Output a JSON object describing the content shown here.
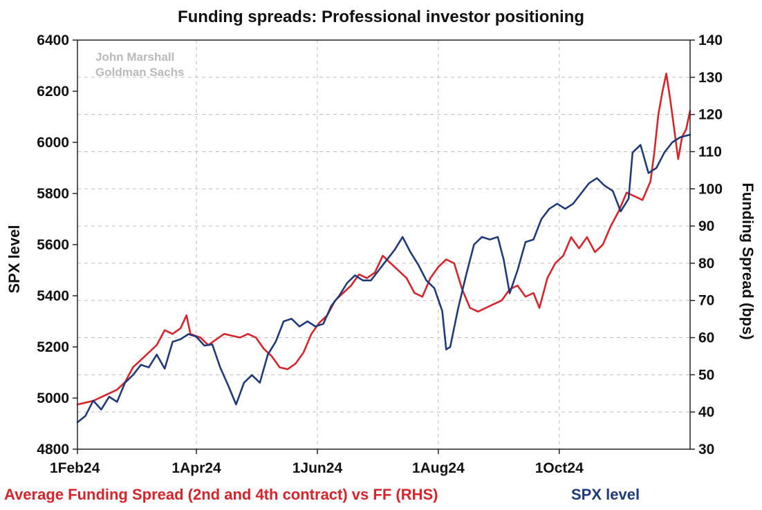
{
  "chart_data": {
    "type": "line",
    "title": "Funding spreads: Professional investor positioning",
    "watermark": [
      "John Marshall",
      "Goldman Sachs"
    ],
    "x_axis": {
      "start": "2024-02-01",
      "end": "2024-12-06",
      "ticks": [
        {
          "date": "2024-02-01",
          "label": "1Feb24"
        },
        {
          "date": "2024-04-01",
          "label": "1Apr24"
        },
        {
          "date": "2024-06-01",
          "label": "1Jun24"
        },
        {
          "date": "2024-08-01",
          "label": "1Aug24"
        },
        {
          "date": "2024-10-01",
          "label": "1Oct24"
        }
      ]
    },
    "y_left": {
      "label": "SPX level",
      "min": 4800,
      "max": 6400,
      "ticks": [
        "4800",
        "5000",
        "5200",
        "5400",
        "5600",
        "5800",
        "6000",
        "6200",
        "6400"
      ]
    },
    "y_right": {
      "label": "Funding Spread (bps)",
      "min": 30,
      "max": 140,
      "ticks": [
        "30",
        "40",
        "50",
        "60",
        "70",
        "80",
        "90",
        "100",
        "110",
        "120",
        "130",
        "140"
      ]
    },
    "grid": true,
    "legend_position": "bottom",
    "series": [
      {
        "name": "Average Funding Spread (2nd and 4th contract) vs FF (RHS)",
        "axis": "right",
        "color": "#d8232a",
        "points": [
          [
            "2024-02-01",
            42.0
          ],
          [
            "2024-02-05",
            42.5
          ],
          [
            "2024-02-09",
            43.0
          ],
          [
            "2024-02-13",
            44.0
          ],
          [
            "2024-02-17",
            45.0
          ],
          [
            "2024-02-21",
            46.0
          ],
          [
            "2024-02-25",
            48.0
          ],
          [
            "2024-02-29",
            52.0
          ],
          [
            "2024-03-04",
            54.0
          ],
          [
            "2024-03-08",
            56.0
          ],
          [
            "2024-03-12",
            58.0
          ],
          [
            "2024-03-16",
            62.0
          ],
          [
            "2024-03-20",
            61.0
          ],
          [
            "2024-03-24",
            62.5
          ],
          [
            "2024-03-27",
            66.0
          ],
          [
            "2024-03-29",
            61.0
          ],
          [
            "2024-04-03",
            60.0
          ],
          [
            "2024-04-07",
            58.0
          ],
          [
            "2024-04-11",
            59.5
          ],
          [
            "2024-04-15",
            61.0
          ],
          [
            "2024-04-19",
            60.5
          ],
          [
            "2024-04-23",
            60.0
          ],
          [
            "2024-04-27",
            61.0
          ],
          [
            "2024-05-01",
            60.0
          ],
          [
            "2024-05-05",
            57.0
          ],
          [
            "2024-05-09",
            55.0
          ],
          [
            "2024-05-13",
            52.0
          ],
          [
            "2024-05-17",
            51.5
          ],
          [
            "2024-05-21",
            53.0
          ],
          [
            "2024-05-25",
            56.0
          ],
          [
            "2024-05-29",
            61.0
          ],
          [
            "2024-06-02",
            64.0
          ],
          [
            "2024-06-06",
            66.0
          ],
          [
            "2024-06-10",
            70.0
          ],
          [
            "2024-06-14",
            72.0
          ],
          [
            "2024-06-18",
            74.0
          ],
          [
            "2024-06-22",
            77.0
          ],
          [
            "2024-06-26",
            76.0
          ],
          [
            "2024-06-30",
            77.5
          ],
          [
            "2024-07-04",
            82.0
          ],
          [
            "2024-07-08",
            80.0
          ],
          [
            "2024-07-12",
            78.0
          ],
          [
            "2024-07-16",
            76.0
          ],
          [
            "2024-07-20",
            72.0
          ],
          [
            "2024-07-24",
            71.0
          ],
          [
            "2024-07-28",
            76.0
          ],
          [
            "2024-08-01",
            79.0
          ],
          [
            "2024-08-05",
            81.0
          ],
          [
            "2024-08-09",
            80.0
          ],
          [
            "2024-08-13",
            73.0
          ],
          [
            "2024-08-17",
            68.0
          ],
          [
            "2024-08-21",
            67.0
          ],
          [
            "2024-08-25",
            68.0
          ],
          [
            "2024-08-29",
            69.0
          ],
          [
            "2024-09-02",
            70.0
          ],
          [
            "2024-09-06",
            73.0
          ],
          [
            "2024-09-10",
            74.0
          ],
          [
            "2024-09-14",
            71.0
          ],
          [
            "2024-09-18",
            72.0
          ],
          [
            "2024-09-21",
            68.0
          ],
          [
            "2024-09-25",
            76.0
          ],
          [
            "2024-09-29",
            80.0
          ],
          [
            "2024-10-03",
            82.0
          ],
          [
            "2024-10-07",
            87.0
          ],
          [
            "2024-10-11",
            84.0
          ],
          [
            "2024-10-15",
            87.0
          ],
          [
            "2024-10-19",
            83.0
          ],
          [
            "2024-10-23",
            85.0
          ],
          [
            "2024-10-27",
            90.0
          ],
          [
            "2024-10-31",
            94.0
          ],
          [
            "2024-11-04",
            99.0
          ],
          [
            "2024-11-08",
            98.0
          ],
          [
            "2024-11-12",
            97.0
          ],
          [
            "2024-11-16",
            102.0
          ],
          [
            "2024-11-18",
            110.0
          ],
          [
            "2024-11-20",
            120.0
          ],
          [
            "2024-11-22",
            126.0
          ],
          [
            "2024-11-24",
            131.0
          ],
          [
            "2024-11-26",
            124.0
          ],
          [
            "2024-11-28",
            116.0
          ],
          [
            "2024-11-30",
            108.0
          ],
          [
            "2024-12-02",
            114.0
          ],
          [
            "2024-12-04",
            116.0
          ],
          [
            "2024-12-06",
            121.0
          ]
        ]
      },
      {
        "name": "SPX level",
        "axis": "left",
        "color": "#1f3a7a",
        "points": [
          [
            "2024-02-01",
            4905
          ],
          [
            "2024-02-05",
            4930
          ],
          [
            "2024-02-09",
            4990
          ],
          [
            "2024-02-13",
            4955
          ],
          [
            "2024-02-17",
            5005
          ],
          [
            "2024-02-21",
            4985
          ],
          [
            "2024-02-25",
            5060
          ],
          [
            "2024-02-29",
            5090
          ],
          [
            "2024-03-04",
            5130
          ],
          [
            "2024-03-08",
            5120
          ],
          [
            "2024-03-12",
            5170
          ],
          [
            "2024-03-16",
            5115
          ],
          [
            "2024-03-20",
            5220
          ],
          [
            "2024-03-24",
            5230
          ],
          [
            "2024-03-28",
            5250
          ],
          [
            "2024-04-01",
            5240
          ],
          [
            "2024-04-05",
            5205
          ],
          [
            "2024-04-09",
            5210
          ],
          [
            "2024-04-13",
            5120
          ],
          [
            "2024-04-17",
            5050
          ],
          [
            "2024-04-21",
            4975
          ],
          [
            "2024-04-25",
            5060
          ],
          [
            "2024-04-29",
            5090
          ],
          [
            "2024-05-03",
            5060
          ],
          [
            "2024-05-07",
            5170
          ],
          [
            "2024-05-11",
            5220
          ],
          [
            "2024-05-15",
            5300
          ],
          [
            "2024-05-19",
            5310
          ],
          [
            "2024-05-23",
            5280
          ],
          [
            "2024-05-27",
            5300
          ],
          [
            "2024-05-31",
            5280
          ],
          [
            "2024-06-04",
            5290
          ],
          [
            "2024-06-08",
            5360
          ],
          [
            "2024-06-12",
            5400
          ],
          [
            "2024-06-16",
            5450
          ],
          [
            "2024-06-20",
            5480
          ],
          [
            "2024-06-24",
            5460
          ],
          [
            "2024-06-28",
            5460
          ],
          [
            "2024-07-02",
            5500
          ],
          [
            "2024-07-06",
            5540
          ],
          [
            "2024-07-10",
            5580
          ],
          [
            "2024-07-14",
            5630
          ],
          [
            "2024-07-18",
            5570
          ],
          [
            "2024-07-22",
            5520
          ],
          [
            "2024-07-26",
            5460
          ],
          [
            "2024-07-30",
            5430
          ],
          [
            "2024-08-03",
            5340
          ],
          [
            "2024-08-05",
            5190
          ],
          [
            "2024-08-07",
            5200
          ],
          [
            "2024-08-11",
            5350
          ],
          [
            "2024-08-15",
            5480
          ],
          [
            "2024-08-19",
            5600
          ],
          [
            "2024-08-23",
            5630
          ],
          [
            "2024-08-27",
            5620
          ],
          [
            "2024-08-31",
            5630
          ],
          [
            "2024-09-03",
            5540
          ],
          [
            "2024-09-06",
            5410
          ],
          [
            "2024-09-10",
            5500
          ],
          [
            "2024-09-14",
            5610
          ],
          [
            "2024-09-18",
            5620
          ],
          [
            "2024-09-22",
            5700
          ],
          [
            "2024-09-26",
            5740
          ],
          [
            "2024-09-30",
            5760
          ],
          [
            "2024-10-04",
            5740
          ],
          [
            "2024-10-08",
            5760
          ],
          [
            "2024-10-12",
            5800
          ],
          [
            "2024-10-16",
            5840
          ],
          [
            "2024-10-20",
            5860
          ],
          [
            "2024-10-24",
            5830
          ],
          [
            "2024-10-28",
            5810
          ],
          [
            "2024-11-01",
            5730
          ],
          [
            "2024-11-05",
            5780
          ],
          [
            "2024-11-07",
            5960
          ],
          [
            "2024-11-11",
            5990
          ],
          [
            "2024-11-15",
            5880
          ],
          [
            "2024-11-19",
            5900
          ],
          [
            "2024-11-23",
            5960
          ],
          [
            "2024-11-27",
            6000
          ],
          [
            "2024-12-01",
            6020
          ],
          [
            "2024-12-06",
            6030
          ]
        ]
      }
    ]
  }
}
